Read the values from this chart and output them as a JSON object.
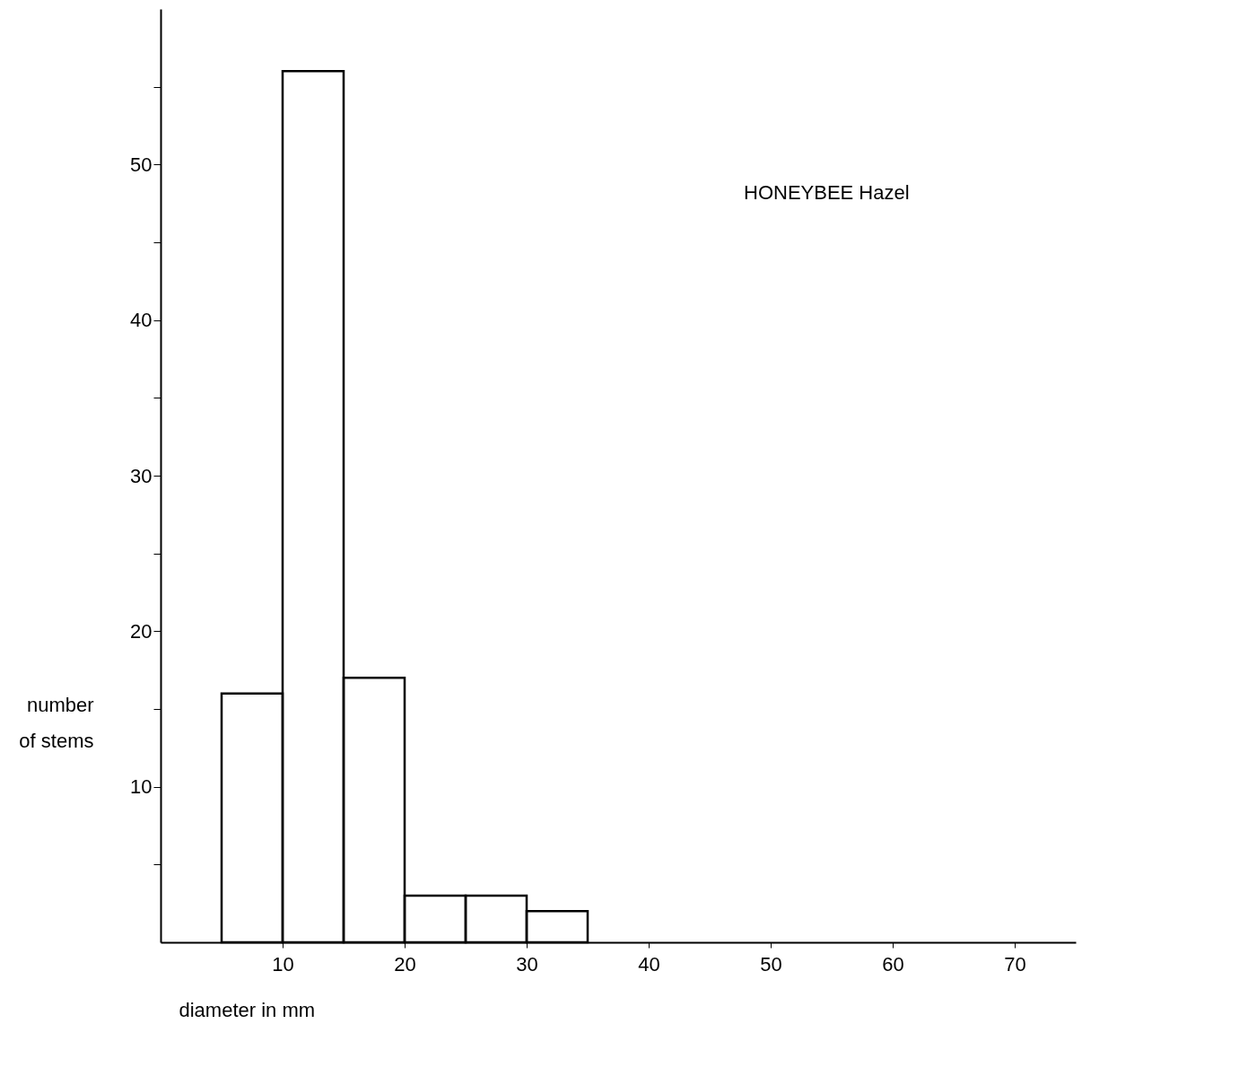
{
  "chart_data": {
    "type": "histogram",
    "xlabel": "diameter in mm",
    "ylabel": "number of stems",
    "annotations": [
      "HONEYBEE Hazel"
    ],
    "bins": [
      5,
      10,
      15,
      20,
      25,
      30,
      35
    ],
    "values": [
      16,
      56,
      17,
      3,
      3,
      2
    ],
    "color": "#000000",
    "xlim": [
      0,
      75
    ],
    "xticks": [
      10,
      20,
      30,
      40,
      50,
      60,
      70
    ],
    "ylim": [
      0,
      60
    ],
    "yticks": [
      {
        "value": 5,
        "label": null
      },
      10,
      {
        "value": 15,
        "label": null
      },
      20,
      {
        "value": 25,
        "label": null
      },
      30,
      {
        "value": 35,
        "label": null
      },
      40,
      {
        "value": 45,
        "label": null
      },
      50,
      {
        "value": 55,
        "label": null
      }
    ],
    "grid": false
  }
}
